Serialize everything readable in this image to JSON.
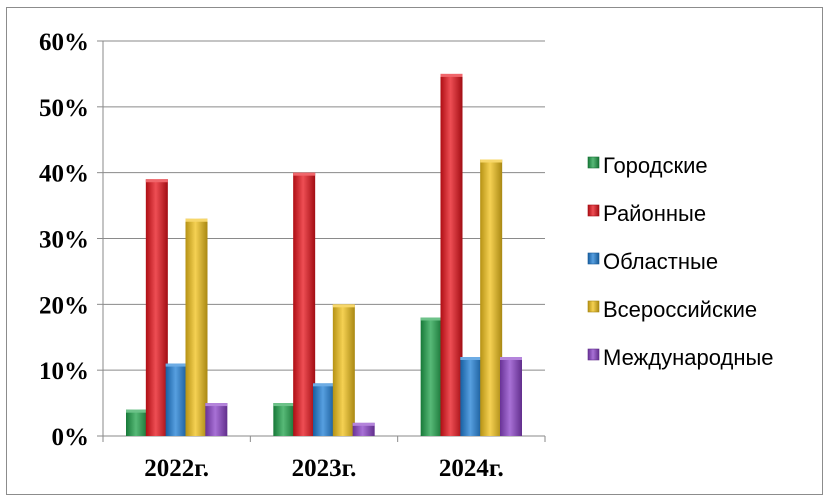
{
  "chart_data": {
    "type": "bar",
    "categories": [
      "2022г.",
      "2023г.",
      "2024г."
    ],
    "series": [
      {
        "name": "Городские",
        "color": "#1fa14a",
        "values": [
          4,
          5,
          18
        ]
      },
      {
        "name": "Районные",
        "color": "#e8131b",
        "values": [
          39,
          40,
          55
        ]
      },
      {
        "name": "Областные",
        "color": "#1f7fd6",
        "values": [
          11,
          8,
          12
        ]
      },
      {
        "name": "Всероссийские",
        "color": "#f2c21a",
        "values": [
          33,
          20,
          42
        ]
      },
      {
        "name": "Международные",
        "color": "#8b42c8",
        "values": [
          5,
          2,
          12
        ]
      }
    ],
    "ylim": [
      0,
      60
    ],
    "yticks": [
      "0%",
      "10%",
      "20%",
      "30%",
      "40%",
      "50%",
      "60%"
    ],
    "grid": true,
    "legend_position": "right"
  }
}
